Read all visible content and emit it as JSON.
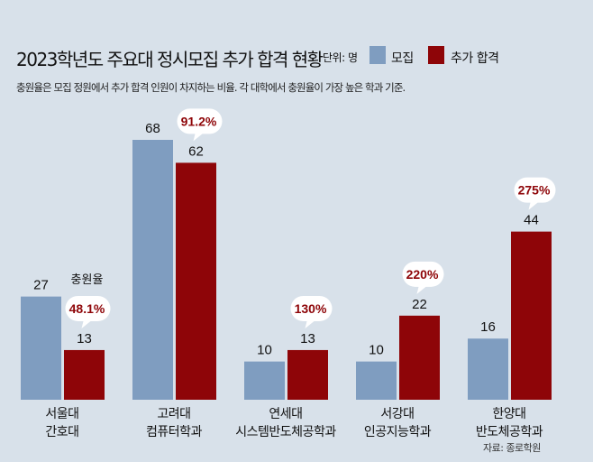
{
  "title": "2023학년도 주요대 정시모집 추가 합격 현황",
  "unit": "단위: 명",
  "subtitle": "충원율은 모집 정원에서 추가 합격 인원이 차지하는 비율. 각 대학에서 충원율이 가장 높은 학과 기준.",
  "source": "자료: 종로학원",
  "rate_label": "충원율",
  "colors": {
    "blue": "#7f9dc0",
    "red": "#8e0508",
    "rate": "#8e0508"
  },
  "chart_data": {
    "type": "bar",
    "title": "2023학년도 주요대 정시모집 추가 합격 현황",
    "ylabel": "명",
    "ylim": [
      0,
      68
    ],
    "grid": false,
    "legend": "top-right",
    "categories": [
      [
        "서울대",
        "간호대"
      ],
      [
        "고려대",
        "컴퓨터학과"
      ],
      [
        "연세대",
        "시스템반도체공학과"
      ],
      [
        "서강대",
        "인공지능학과"
      ],
      [
        "한양대",
        "반도체공학과"
      ]
    ],
    "series": [
      {
        "name": "모집",
        "values": [
          27,
          68,
          10,
          10,
          16
        ]
      },
      {
        "name": "추가 합격",
        "values": [
          13,
          62,
          13,
          22,
          44
        ]
      }
    ],
    "rates": [
      "48.1%",
      "91.2%",
      "130%",
      "220%",
      "275%"
    ]
  }
}
